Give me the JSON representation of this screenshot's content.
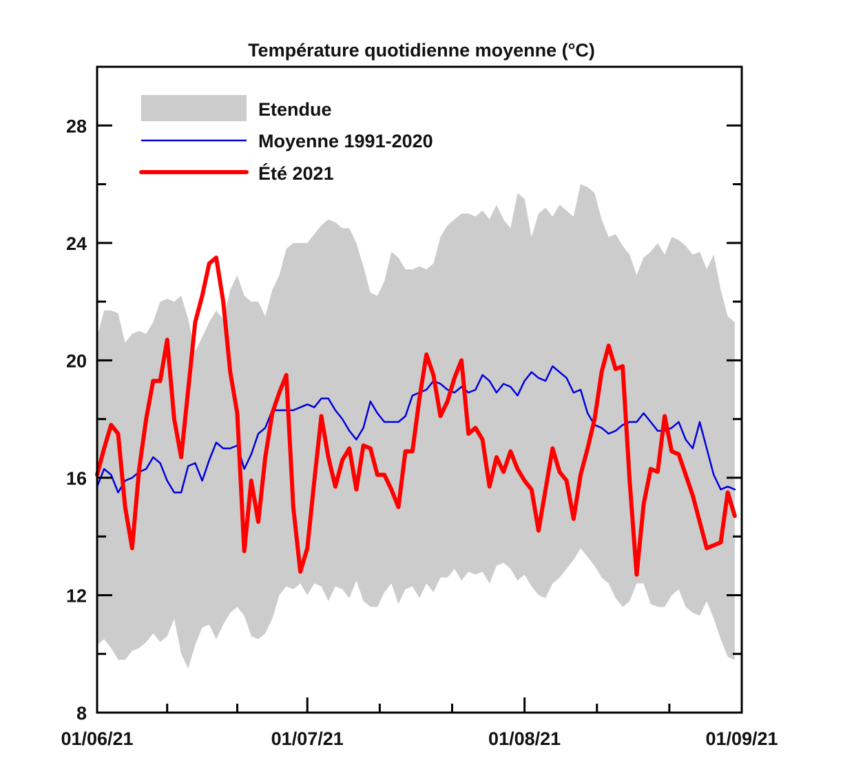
{
  "chart_data": {
    "type": "area",
    "title": "Température quotidienne moyenne (°C)",
    "xlabel": "",
    "ylabel": "",
    "ylim": [
      8,
      30
    ],
    "yticks": [
      8,
      12,
      16,
      20,
      24,
      28
    ],
    "ytick_labels": [
      "8",
      "12",
      "16",
      "20",
      "24",
      "28"
    ],
    "x_start": "01/06/21",
    "x_days": 92,
    "xtick_days": [
      0,
      30,
      61,
      92
    ],
    "xtick_labels": [
      "01/06/21",
      "01/07/21",
      "01/08/21",
      "01/09/21"
    ],
    "grid": false,
    "legend_position": "top-left",
    "colors": {
      "band": "#cccccc",
      "mean": "#0000dd",
      "summer": "#ff0000",
      "axis": "#000000"
    },
    "series": [
      {
        "name": "Etendue",
        "kind": "band",
        "upper": [
          20.8,
          21.7,
          21.7,
          21.6,
          20.6,
          20.9,
          21,
          20.9,
          21.3,
          22,
          22.1,
          22,
          22.2,
          21.4,
          20.3,
          20.8,
          21.3,
          21.7,
          21.4,
          22.4,
          22.9,
          22.2,
          22,
          22,
          21.5,
          22.4,
          22.9,
          23.8,
          24,
          24,
          24,
          24.3,
          24.6,
          24.8,
          24.7,
          24.5,
          24.5,
          24,
          23.2,
          22.3,
          22.2,
          22.7,
          23.7,
          23.5,
          23.1,
          23.1,
          23.2,
          23.1,
          23.3,
          24.2,
          24.6,
          24.8,
          25,
          25,
          24.9,
          25.1,
          24.8,
          25.3,
          24.8,
          24.5,
          25.7,
          25.5,
          24.2,
          25,
          25.2,
          24.9,
          25.3,
          25.1,
          24.9,
          26,
          25.9,
          25.7,
          24.8,
          24.2,
          24.3,
          23.9,
          23.6,
          22.9,
          23.5,
          23.7,
          24,
          23.6,
          24.2,
          24.1,
          23.9,
          23.6,
          23.7,
          23.1,
          23.6,
          22.4,
          21.5,
          21.3
        ],
        "lower": [
          10.3,
          10.5,
          10.2,
          9.8,
          9.8,
          10.1,
          10.2,
          10.4,
          10.7,
          10.4,
          10.6,
          11.2,
          10,
          9.5,
          10.3,
          10.9,
          11,
          10.5,
          11,
          11.4,
          11.6,
          11.3,
          10.6,
          10.5,
          10.7,
          11.2,
          12,
          12.3,
          12.2,
          12.4,
          12,
          12.4,
          12.3,
          11.8,
          12.3,
          12.2,
          11.9,
          12.5,
          11.8,
          11.6,
          11.6,
          12.1,
          12.4,
          11.7,
          12.2,
          12.3,
          11.9,
          12.4,
          12.1,
          12.6,
          12.6,
          12.9,
          12.5,
          12.8,
          12.7,
          12.8,
          12.4,
          13,
          13.1,
          12.9,
          12.5,
          12.7,
          12.3,
          12,
          11.9,
          12.4,
          12.6,
          12.9,
          13.2,
          13.6,
          13.3,
          13,
          12.6,
          12.4,
          11.9,
          11.6,
          11.8,
          12.4,
          12.4,
          11.7,
          11.6,
          11.6,
          12,
          12.2,
          11.6,
          11.4,
          11.3,
          11.8,
          11.2,
          10.5,
          9.9,
          9.8
        ]
      },
      {
        "name": "Moyenne 1991-2020",
        "kind": "line",
        "values": [
          15.7,
          16.3,
          16.1,
          15.5,
          15.9,
          16,
          16.2,
          16.3,
          16.7,
          16.5,
          15.9,
          15.5,
          15.5,
          16.4,
          16.5,
          15.9,
          16.6,
          17.2,
          17,
          17,
          17.1,
          16.3,
          16.8,
          17.5,
          17.7,
          18.3,
          18.3,
          18.3,
          18.3,
          18.4,
          18.5,
          18.4,
          18.7,
          18.7,
          18.3,
          18,
          17.6,
          17.3,
          17.7,
          18.6,
          18.2,
          17.9,
          17.9,
          17.9,
          18.1,
          18.8,
          18.9,
          19,
          19.3,
          19.2,
          19,
          18.9,
          19.1,
          18.9,
          19,
          19.5,
          19.3,
          18.9,
          19.2,
          19.1,
          18.8,
          19.3,
          19.6,
          19.4,
          19.3,
          19.8,
          19.6,
          19.4,
          18.9,
          19,
          18.2,
          17.8,
          17.7,
          17.5,
          17.6,
          17.8,
          17.9,
          17.9,
          18.2,
          17.9,
          17.6,
          17.6,
          17.7,
          17.9,
          17.3,
          17,
          17.9,
          17,
          16.1,
          15.6,
          15.7,
          15.6
        ]
      },
      {
        "name": "Été 2021",
        "kind": "line",
        "values": [
          16.1,
          17,
          17.8,
          17.5,
          15,
          13.6,
          16.3,
          18,
          19.3,
          19.3,
          20.7,
          18,
          16.7,
          19,
          21.3,
          22.2,
          23.3,
          23.5,
          22,
          19.6,
          18.2,
          13.5,
          15.9,
          14.5,
          16.7,
          18.2,
          18.9,
          19.5,
          15,
          12.8,
          13.6,
          15.9,
          18.1,
          16.7,
          15.7,
          16.6,
          17,
          15.6,
          17.1,
          17,
          16.1,
          16.1,
          15.6,
          15,
          16.9,
          16.9,
          18.7,
          20.2,
          19.5,
          18.1,
          18.6,
          19.4,
          20,
          17.5,
          17.7,
          17.3,
          15.7,
          16.7,
          16.2,
          16.9,
          16.3,
          15.9,
          15.6,
          14.2,
          15.6,
          17,
          16.2,
          15.9,
          14.6,
          16.1,
          17,
          18,
          19.6,
          20.5,
          19.7,
          19.8,
          15.9,
          12.7,
          15.1,
          16.3,
          16.2,
          18.1,
          16.9,
          16.8,
          16.1,
          15.4,
          14.5,
          13.6,
          13.7,
          13.8,
          15.5,
          14.7
        ]
      }
    ]
  }
}
